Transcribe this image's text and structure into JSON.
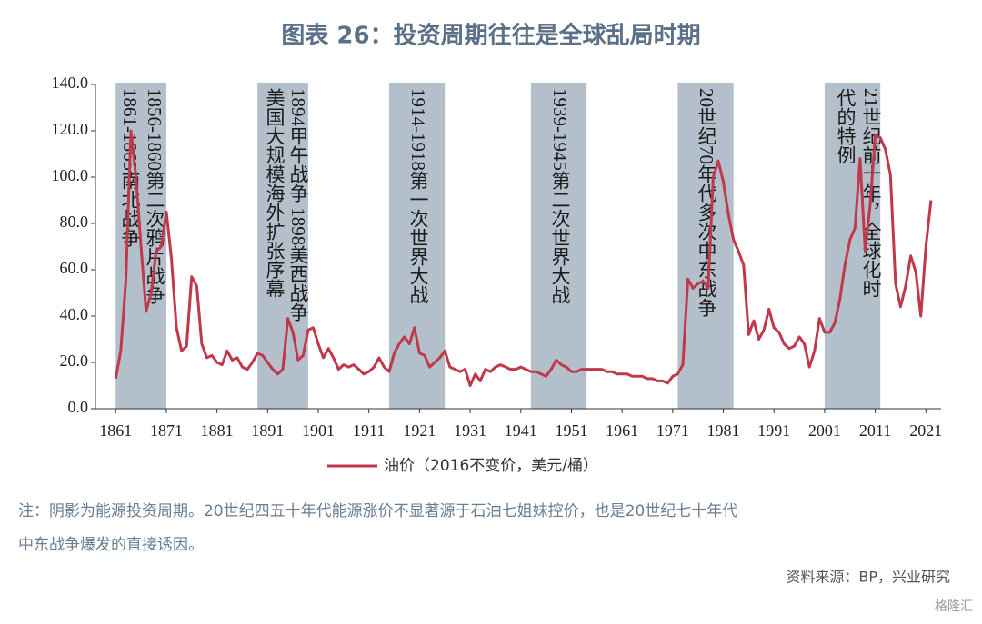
{
  "chart_data": {
    "type": "line",
    "title": "图表 26：投资周期往往是全球乱局时期",
    "x": [
      1861,
      1862,
      1863,
      1864,
      1865,
      1866,
      1867,
      1868,
      1869,
      1870,
      1871,
      1872,
      1873,
      1874,
      1875,
      1876,
      1877,
      1878,
      1879,
      1880,
      1881,
      1882,
      1883,
      1884,
      1885,
      1886,
      1887,
      1888,
      1889,
      1890,
      1891,
      1892,
      1893,
      1894,
      1895,
      1896,
      1897,
      1898,
      1899,
      1900,
      1901,
      1902,
      1903,
      1904,
      1905,
      1906,
      1907,
      1908,
      1909,
      1910,
      1911,
      1912,
      1913,
      1914,
      1915,
      1916,
      1917,
      1918,
      1919,
      1920,
      1921,
      1922,
      1923,
      1924,
      1925,
      1926,
      1927,
      1928,
      1929,
      1930,
      1931,
      1932,
      1933,
      1934,
      1935,
      1936,
      1937,
      1938,
      1939,
      1940,
      1941,
      1942,
      1943,
      1944,
      1945,
      1946,
      1947,
      1948,
      1949,
      1950,
      1951,
      1952,
      1953,
      1954,
      1955,
      1956,
      1957,
      1958,
      1959,
      1960,
      1961,
      1962,
      1963,
      1964,
      1965,
      1966,
      1967,
      1968,
      1969,
      1970,
      1971,
      1972,
      1973,
      1974,
      1975,
      1976,
      1977,
      1978,
      1979,
      1980,
      1981,
      1982,
      1983,
      1984,
      1985,
      1986,
      1987,
      1988,
      1989,
      1990,
      1991,
      1992,
      1993,
      1994,
      1995,
      1996,
      1997,
      1998,
      1999,
      2000,
      2001,
      2002,
      2003,
      2004,
      2005,
      2006,
      2007,
      2008,
      2009,
      2010,
      2011,
      2012,
      2013,
      2014,
      2015,
      2016,
      2017,
      2018,
      2019,
      2020,
      2021,
      2022
    ],
    "series": [
      {
        "name": "油价（2016不变价，美元/桶）",
        "color": "#c0394b",
        "values": [
          13,
          25,
          55,
          120,
          100,
          70,
          42,
          50,
          68,
          70,
          85,
          65,
          35,
          25,
          27,
          57,
          53,
          28,
          22,
          23,
          20,
          19,
          25,
          21,
          22,
          18,
          17,
          20,
          24,
          23,
          20,
          17,
          15,
          17,
          39,
          33,
          21,
          23,
          34,
          35,
          28,
          22,
          26,
          22,
          17,
          19,
          18,
          19,
          17,
          15,
          16,
          18,
          22,
          18,
          16,
          24,
          28,
          31,
          28,
          35,
          24,
          23,
          18,
          20,
          22,
          25,
          18,
          17,
          16,
          17,
          10,
          15,
          12,
          17,
          16,
          18,
          19,
          18,
          17,
          17,
          18,
          17,
          16,
          16,
          15,
          14,
          17,
          21,
          19,
          18,
          16,
          16,
          17,
          17,
          17,
          17,
          17,
          16,
          16,
          15,
          15,
          15,
          14,
          14,
          14,
          13,
          13,
          12,
          12,
          11,
          14,
          15,
          19,
          56,
          52,
          54,
          55,
          52,
          100,
          107,
          98,
          84,
          73,
          68,
          62,
          32,
          38,
          30,
          34,
          43,
          35,
          33,
          28,
          26,
          27,
          31,
          28,
          18,
          25,
          39,
          33,
          33,
          37,
          47,
          62,
          73,
          78,
          108,
          68,
          88,
          118,
          117,
          112,
          101,
          54,
          44,
          53,
          66,
          59,
          40,
          70,
          90
        ]
      }
    ],
    "xlim": [
      1857,
      2024
    ],
    "xticks": [
      1861,
      1871,
      1881,
      1891,
      1901,
      1911,
      1921,
      1931,
      1941,
      1951,
      1961,
      1971,
      1981,
      1991,
      2001,
      2011,
      2021
    ],
    "ylim": [
      0,
      140
    ],
    "yticks": [
      {
        "value": 0,
        "label": "0.0"
      },
      {
        "value": 20,
        "label": "20.0"
      },
      {
        "value": 40,
        "label": "40.0"
      },
      {
        "value": 60,
        "label": "60.0"
      },
      {
        "value": 80,
        "label": "80.0"
      },
      {
        "value": 100,
        "label": "100.0"
      },
      {
        "value": 120,
        "label": "120.0"
      },
      {
        "value": 140,
        "label": "140.0"
      }
    ],
    "shade_color": "#b3bfca",
    "shaded_periods": [
      {
        "start": 1861,
        "end": 1871,
        "labels": [
          "1861-1865南北战争",
          "1856-1860第二次鸦片战争"
        ]
      },
      {
        "start": 1889,
        "end": 1899,
        "labels": [
          "美国大规模海外扩张序幕",
          "1894甲午战争 1898美西战争"
        ]
      },
      {
        "start": 1915,
        "end": 1926,
        "labels": [
          "1914-1918第一次世界大战"
        ]
      },
      {
        "start": 1943,
        "end": 1954,
        "labels": [
          "1939-1945第二次世界大战"
        ]
      },
      {
        "start": 1972,
        "end": 1983,
        "labels": [
          "20世纪70年代多次中东战争"
        ]
      },
      {
        "start": 2001,
        "end": 2012,
        "labels": [
          "代的特例",
          "21世纪前十年，全球化时"
        ]
      }
    ]
  },
  "note": [
    "注：阴影为能源投资周期。20世纪四五十年代能源涨价不显著源于石油七姐妹控价，也是20世纪七十年代",
    "中东战争爆发的直接诱因。"
  ],
  "source": "资料来源：BP，兴业研究",
  "watermark": "格隆汇"
}
